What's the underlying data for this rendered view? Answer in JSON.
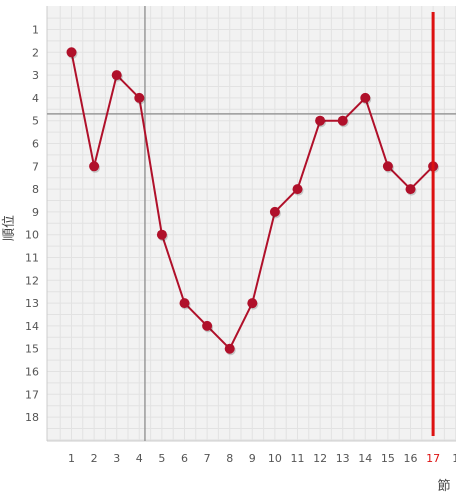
{
  "chart_data": {
    "type": "line",
    "xlabel": "節",
    "ylabel": "順位",
    "x": [
      1,
      2,
      3,
      4,
      5,
      6,
      7,
      8,
      9,
      10,
      11,
      12,
      13,
      14,
      15,
      16,
      17
    ],
    "x_tick_labels": [
      "1",
      "2",
      "3",
      "4",
      "5",
      "6",
      "7",
      "8",
      "9",
      "10",
      "11",
      "12",
      "13",
      "14",
      "15",
      "16",
      "17",
      "1"
    ],
    "y_tick_labels": [
      "1",
      "2",
      "3",
      "4",
      "5",
      "6",
      "7",
      "8",
      "9",
      "10",
      "11",
      "12",
      "13",
      "14",
      "15",
      "16",
      "17",
      "18"
    ],
    "series": [
      {
        "values": [
          2,
          7,
          3,
          4,
          10,
          13,
          14,
          15,
          13,
          9,
          8,
          5,
          5,
          4,
          7,
          8,
          7
        ]
      }
    ],
    "xlim": [
      0,
      18
    ],
    "ylim": [
      19,
      0
    ],
    "y_inverted": true,
    "grid": true,
    "highlight_x": 17,
    "crosshair": {
      "x": 4.25,
      "y": 4.7
    },
    "colors": {
      "line": "#b0102a",
      "marker": "#b0102a",
      "highlight": "#dd1111",
      "crosshair": "#999999",
      "plot_bg": "#f2f2f2",
      "grid": "#e2e2e2"
    }
  }
}
